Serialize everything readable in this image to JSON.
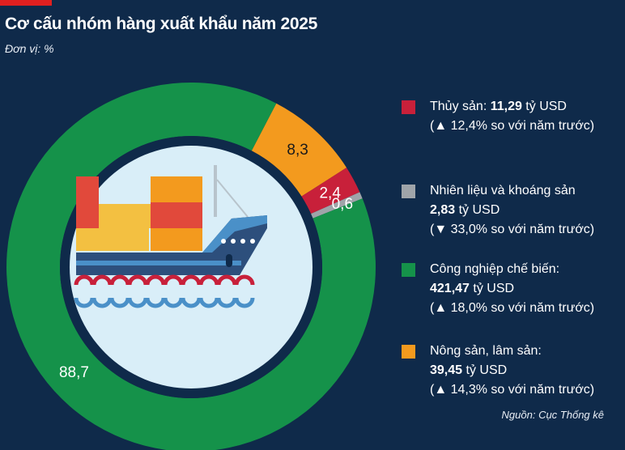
{
  "header": {
    "title": "Cơ cấu nhóm hàng xuất khẩu năm 2025",
    "unit": "Đơn vị: %"
  },
  "colors": {
    "background": "#0f2a4a",
    "accent": "#e02020",
    "inner_circle": "#d9eef8"
  },
  "chart_data": {
    "type": "pie",
    "title": "Cơ cấu nhóm hàng xuất khẩu năm 2025",
    "unit": "%",
    "categories": [
      "Thủy sản",
      "Nhiên liệu và khoáng sản",
      "Công nghiệp chế biến",
      "Nông sản, lâm sản"
    ],
    "values": [
      2.4,
      0.6,
      88.7,
      8.3
    ],
    "value_labels": [
      "2,4",
      "0,6",
      "88,7",
      "8,3"
    ],
    "colors": [
      "#c8203a",
      "#9fa4a9",
      "#15924a",
      "#f39a1e"
    ],
    "label_colors": [
      "#ffffff",
      "#ffffff",
      "#ffffff",
      "#1a1a1a"
    ]
  },
  "legend": [
    {
      "label": "Thủy sản: ",
      "value": "11,29",
      "unit": " tỷ USD",
      "change": "(▲ 12,4% so với năm trước)",
      "color": "#c8203a"
    },
    {
      "label": "Nhiên liệu và khoáng sản",
      "value": "2,83",
      "unit": " tỷ USD",
      "change": "(▼ 33,0% so với năm trước)",
      "color": "#9fa4a9"
    },
    {
      "label": "Công nghiệp chế biến:",
      "value": "421,47",
      "unit": " tỷ USD",
      "change": "(▲ 18,0% so với năm trước)",
      "color": "#15924a"
    },
    {
      "label": "Nông sản, lâm sản:",
      "value": "39,45",
      "unit": " tỷ USD",
      "change": "(▲ 14,3% so với năm trước)",
      "color": "#f39a1e"
    }
  ],
  "footer": {
    "source": "Nguồn: Cục Thống kê"
  }
}
